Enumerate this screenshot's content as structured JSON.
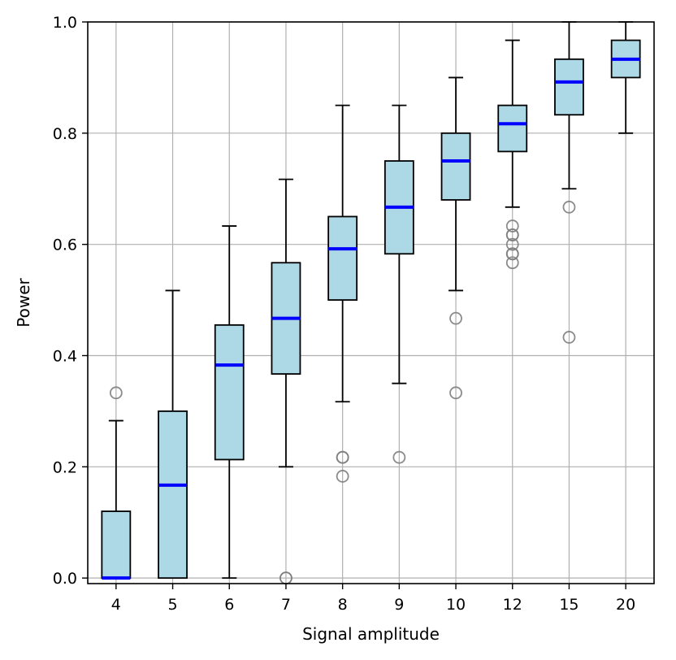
{
  "chart_data": {
    "type": "box",
    "title": "",
    "xlabel": "Signal amplitude",
    "ylabel": "Power",
    "ylim": [
      -0.01,
      1.0
    ],
    "yticks": [
      0.0,
      0.2,
      0.4,
      0.6,
      0.8,
      1.0
    ],
    "ytick_labels": [
      "0.0",
      "0.2",
      "0.4",
      "0.6",
      "0.8",
      "1.0"
    ],
    "grid": true,
    "colors": {
      "box_fill": "#add8e6",
      "median": "#0000ff",
      "outlier": "#808080",
      "grid": "#b0b0b0"
    },
    "categories": [
      "4",
      "5",
      "6",
      "7",
      "8",
      "9",
      "10",
      "12",
      "15",
      "20"
    ],
    "boxes": [
      {
        "label": "4",
        "whisker_low": 0.0,
        "q1": 0.0,
        "median": 0.0,
        "q3": 0.12,
        "whisker_high": 0.283,
        "outliers": [
          0.333
        ]
      },
      {
        "label": "5",
        "whisker_low": 0.0,
        "q1": 0.0,
        "median": 0.167,
        "q3": 0.3,
        "whisker_high": 0.517,
        "outliers": []
      },
      {
        "label": "6",
        "whisker_low": 0.0,
        "q1": 0.213,
        "median": 0.383,
        "q3": 0.455,
        "whisker_high": 0.633,
        "outliers": []
      },
      {
        "label": "7",
        "whisker_low": 0.2,
        "q1": 0.367,
        "median": 0.467,
        "q3": 0.567,
        "whisker_high": 0.717,
        "outliers": [
          0.0,
          0.0
        ]
      },
      {
        "label": "8",
        "whisker_low": 0.317,
        "q1": 0.5,
        "median": 0.592,
        "q3": 0.65,
        "whisker_high": 0.85,
        "outliers": [
          0.217,
          0.217,
          0.183
        ]
      },
      {
        "label": "9",
        "whisker_low": 0.35,
        "q1": 0.583,
        "median": 0.667,
        "q3": 0.75,
        "whisker_high": 0.85,
        "outliers": [
          0.217
        ]
      },
      {
        "label": "10",
        "whisker_low": 0.517,
        "q1": 0.68,
        "median": 0.75,
        "q3": 0.8,
        "whisker_high": 0.9,
        "outliers": [
          0.467,
          0.333
        ]
      },
      {
        "label": "12",
        "whisker_low": 0.667,
        "q1": 0.767,
        "median": 0.817,
        "q3": 0.85,
        "whisker_high": 0.967,
        "outliers": [
          0.633,
          0.617,
          0.617,
          0.6,
          0.583,
          0.583,
          0.567
        ]
      },
      {
        "label": "15",
        "whisker_low": 0.7,
        "q1": 0.833,
        "median": 0.892,
        "q3": 0.933,
        "whisker_high": 1.0,
        "outliers": [
          0.667,
          0.433
        ]
      },
      {
        "label": "20",
        "whisker_low": 0.8,
        "q1": 0.9,
        "median": 0.933,
        "q3": 0.967,
        "whisker_high": 1.0,
        "outliers": []
      }
    ]
  }
}
